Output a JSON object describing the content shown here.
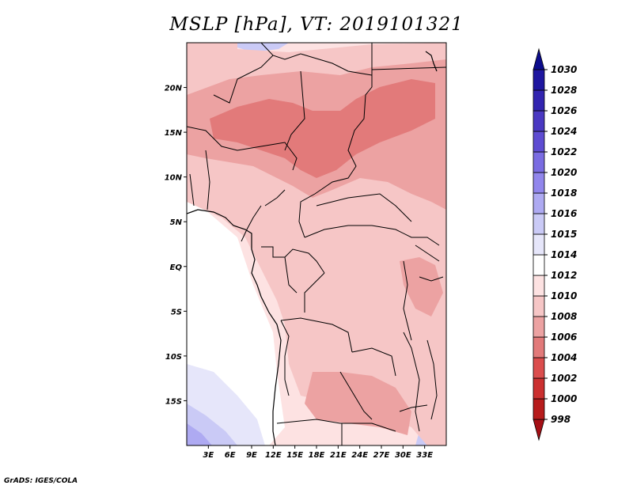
{
  "title": "MSLP [hPa], VT: 2019101321",
  "footer": "GrADS: IGES/COLA",
  "map": {
    "lon_range": [
      0,
      36
    ],
    "lat_range": [
      -20,
      25
    ],
    "lon_ticks": [
      {
        "lon": 3,
        "label": "3E"
      },
      {
        "lon": 6,
        "label": "6E"
      },
      {
        "lon": 9,
        "label": "9E"
      },
      {
        "lon": 12,
        "label": "12E"
      },
      {
        "lon": 15,
        "label": "15E"
      },
      {
        "lon": 18,
        "label": "18E"
      },
      {
        "lon": 21,
        "label": "21E"
      },
      {
        "lon": 24,
        "label": "24E"
      },
      {
        "lon": 27,
        "label": "27E"
      },
      {
        "lon": 30,
        "label": "30E"
      },
      {
        "lon": 33,
        "label": "33E"
      }
    ],
    "lat_ticks": [
      {
        "lat": 20,
        "label": "20N"
      },
      {
        "lat": 15,
        "label": "15N"
      },
      {
        "lat": 10,
        "label": "10N"
      },
      {
        "lat": 5,
        "label": "5N"
      },
      {
        "lat": 0,
        "label": "EQ"
      },
      {
        "lat": -5,
        "label": "5S"
      },
      {
        "lat": -10,
        "label": "10S"
      },
      {
        "lat": -15,
        "label": "15S"
      }
    ]
  },
  "colorbar": {
    "colors": [
      "#a50f15",
      "#b71c1c",
      "#cb3030",
      "#db4d4d",
      "#e27a7a",
      "#eca2a2",
      "#f6c6c6",
      "#fde2e2",
      "#ffffff",
      "#e6e6fa",
      "#cacaf6",
      "#aeaaf2",
      "#9186ec",
      "#7a6ce2",
      "#5e4cd2",
      "#4a38c2",
      "#3224b0",
      "#1e16a0",
      "#0c0c8c"
    ],
    "labels": [
      "998",
      "1000",
      "1002",
      "1004",
      "1006",
      "1008",
      "1010",
      "1012",
      "1014",
      "1015",
      "1016",
      "1018",
      "1020",
      "1022",
      "1024",
      "1026",
      "1028",
      "1030"
    ]
  }
}
